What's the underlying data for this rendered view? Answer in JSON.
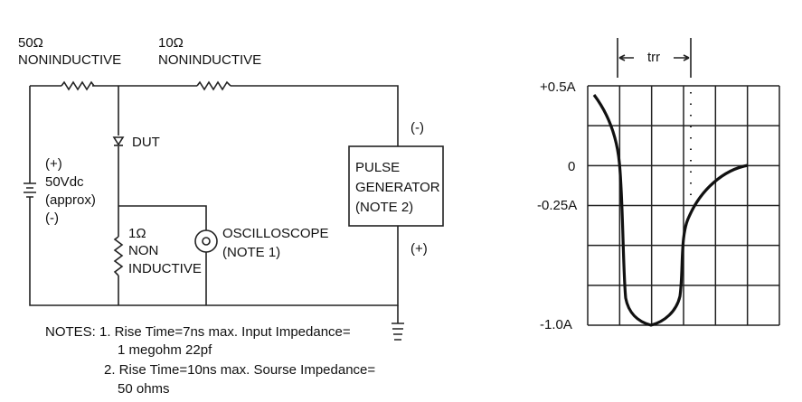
{
  "circuit": {
    "r1_value": "50Ω",
    "r1_type": "NONINDUCTIVE",
    "r2_value": "10Ω",
    "r2_type": "NONINDUCTIVE",
    "dut_label": "DUT",
    "battery": [
      "(+)",
      "50Vdc",
      "(approx)",
      "(-)"
    ],
    "sense_resistor": [
      "1Ω",
      "NON",
      "INDUCTIVE"
    ],
    "oscilloscope": [
      "OSCILLOSCOPE",
      "(NOTE 1)"
    ],
    "pulse_generator": [
      "PULSE",
      "GENERATOR",
      "(NOTE 2)"
    ],
    "pg_top_polarity": "(-)",
    "pg_bottom_polarity": "(+)"
  },
  "notes": [
    "NOTES: 1. Rise Time=7ns max. Input Impedance=",
    "1 megohm 22pf",
    "2. Rise Time=10ns max. Sourse Impedance=",
    "50 ohms"
  ],
  "waveform": {
    "trr_label": "trr",
    "y_labels": [
      "+0.5A",
      "0",
      "-0.25A",
      "-1.0A"
    ],
    "grid_columns": 6,
    "grid_rows": 6
  }
}
